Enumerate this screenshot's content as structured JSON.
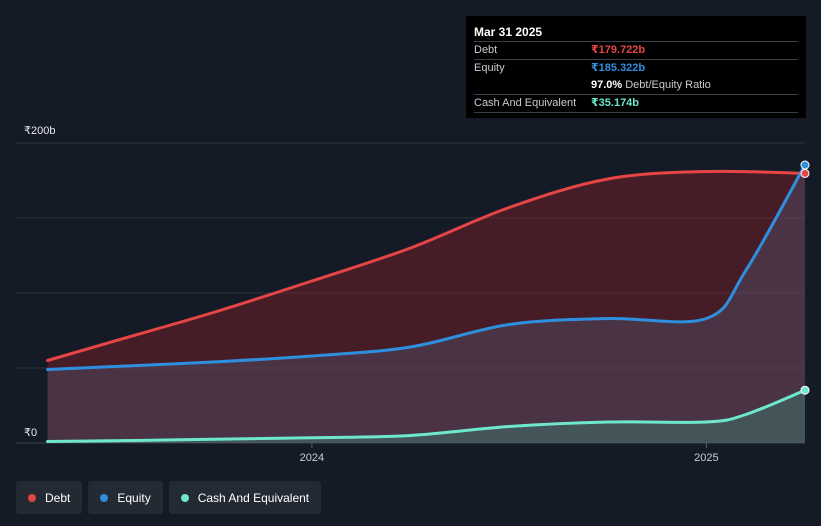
{
  "tooltip": {
    "date": "Mar 31 2025",
    "debt_label": "Debt",
    "debt_value": "₹179.722b",
    "equity_label": "Equity",
    "equity_value": "₹185.322b",
    "ratio_value": "97.0%",
    "ratio_label": "Debt/Equity Ratio",
    "cash_label": "Cash And Equivalent",
    "cash_value": "₹35.174b"
  },
  "legend": {
    "debt": "Debt",
    "equity": "Equity",
    "cash": "Cash And Equivalent"
  },
  "colors": {
    "debt": "#e64545",
    "equity": "#2f8fdf",
    "cash": "#6ee7cd",
    "background": "#151b26"
  },
  "chart_data": {
    "type": "area",
    "ylim": [
      0,
      200
    ],
    "y_unit": "b",
    "y_ticks": [
      {
        "value": 200,
        "label": "₹200b"
      },
      {
        "value": 0,
        "label": "₹0"
      }
    ],
    "x_ticks": [
      {
        "value": 2024.0,
        "label": "2024"
      },
      {
        "value": 2025.0,
        "label": "2025"
      }
    ],
    "xlim": [
      2023.25,
      2025.25
    ],
    "series": [
      {
        "name": "Debt",
        "points": [
          [
            2023.33,
            55
          ],
          [
            2023.5,
            68
          ],
          [
            2023.75,
            87
          ],
          [
            2024.0,
            108
          ],
          [
            2024.25,
            130
          ],
          [
            2024.5,
            157
          ],
          [
            2024.75,
            176
          ],
          [
            2025.0,
            181
          ],
          [
            2025.25,
            179.722
          ]
        ]
      },
      {
        "name": "Equity",
        "points": [
          [
            2023.33,
            49
          ],
          [
            2023.5,
            51
          ],
          [
            2023.75,
            54
          ],
          [
            2024.0,
            58
          ],
          [
            2024.25,
            64
          ],
          [
            2024.5,
            79
          ],
          [
            2024.75,
            83
          ],
          [
            2025.0,
            83
          ],
          [
            2025.1,
            115
          ],
          [
            2025.25,
            185.322
          ]
        ]
      },
      {
        "name": "Cash And Equivalent",
        "points": [
          [
            2023.33,
            1
          ],
          [
            2023.5,
            1.5
          ],
          [
            2023.75,
            2.5
          ],
          [
            2024.0,
            3.5
          ],
          [
            2024.25,
            5
          ],
          [
            2024.5,
            11
          ],
          [
            2024.75,
            14
          ],
          [
            2025.0,
            14
          ],
          [
            2025.1,
            19
          ],
          [
            2025.25,
            35.174
          ]
        ]
      }
    ]
  }
}
